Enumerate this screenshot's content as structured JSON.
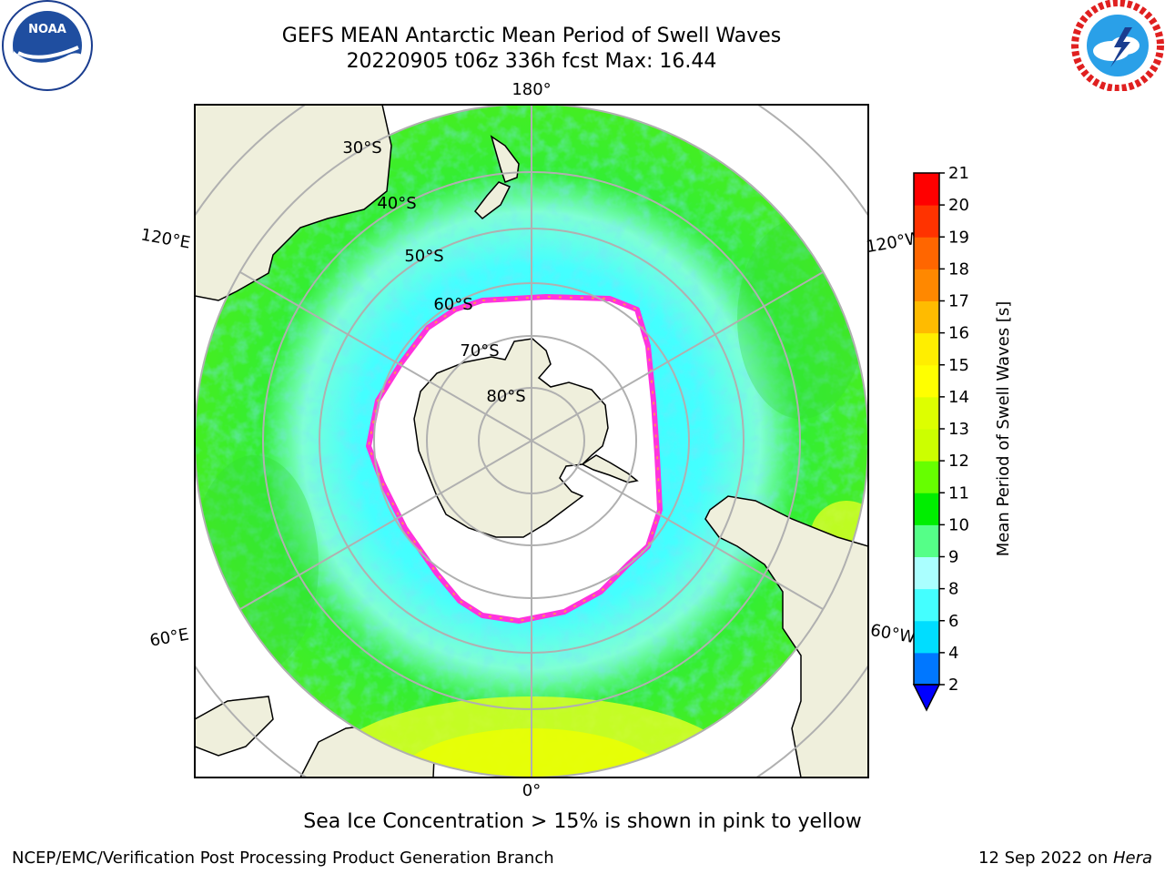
{
  "title_line1": "GEFS MEAN Antarctic Mean Period of Swell Waves",
  "title_line2": "20220905 t06z 336h fcst   Max: 16.44",
  "logos": {
    "left": "NOAA",
    "right": "NATIONAL WEATHER SERVICE"
  },
  "longitude_labels": {
    "top": "180°",
    "bottom": "0°",
    "left_upper": "120°E",
    "left_lower": "60°E",
    "right_upper": "120°W",
    "right_lower": "60°W"
  },
  "latitude_labels": [
    "30°S",
    "40°S",
    "50°S",
    "60°S",
    "70°S",
    "80°S"
  ],
  "colorbar": {
    "label": "Mean Period of Swell Waves [s]",
    "ticks": [
      "2",
      "4",
      "6",
      "8",
      "9",
      "10",
      "11",
      "12",
      "13",
      "14",
      "15",
      "16",
      "17",
      "18",
      "19",
      "20",
      "21"
    ],
    "colors": [
      "#0077ff",
      "#00ddff",
      "#44ffff",
      "#aaffff",
      "#55ff88",
      "#00ee00",
      "#66ff00",
      "#ccff00",
      "#ddff00",
      "#ffff00",
      "#ffee00",
      "#ffbb00",
      "#ff8800",
      "#ff6600",
      "#ff3300",
      "#ff0000"
    ],
    "extend_color": "#0000ff"
  },
  "sea_ice_note": "Sea Ice Concentration > 15% is shown in pink to yellow",
  "footer_left": "NCEP/EMC/Verification Post Processing Product Generation Branch",
  "footer_date": "12 Sep 2022 on ",
  "footer_machine": "Hera"
}
